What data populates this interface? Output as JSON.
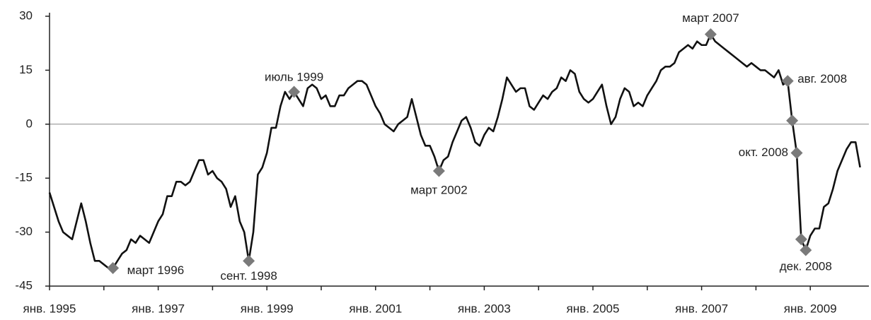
{
  "chart_data": {
    "type": "line",
    "categories": [
      "янв. 1995",
      null,
      null,
      null,
      null,
      null,
      null,
      null,
      null,
      null,
      null,
      null,
      null,
      null,
      null,
      null,
      null,
      null,
      null,
      null,
      null,
      null,
      null,
      null,
      "янв. 1997",
      null,
      null,
      null,
      null,
      null,
      null,
      null,
      null,
      null,
      null,
      null,
      null,
      null,
      null,
      null,
      null,
      null,
      null,
      null,
      null,
      null,
      null,
      null,
      "янв. 1999",
      null,
      null,
      null,
      null,
      null,
      null,
      null,
      null,
      null,
      null,
      null,
      null,
      null,
      null,
      null,
      null,
      null,
      null,
      null,
      null,
      null,
      null,
      null,
      "янв. 2001",
      null,
      null,
      null,
      null,
      null,
      null,
      null,
      null,
      null,
      null,
      null,
      null,
      null,
      null,
      null,
      null,
      null,
      null,
      null,
      null,
      null,
      null,
      null,
      "янв. 2003",
      null,
      null,
      null,
      null,
      null,
      null,
      null,
      null,
      null,
      null,
      null,
      null,
      null,
      null,
      null,
      null,
      null,
      null,
      null,
      null,
      null,
      null,
      null,
      "янв. 2005",
      null,
      null,
      null,
      null,
      null,
      null,
      null,
      null,
      null,
      null,
      null,
      null,
      null,
      null,
      null,
      null,
      null,
      null,
      null,
      null,
      null,
      null,
      null,
      "янв. 2007",
      null,
      null,
      null,
      null,
      null,
      null,
      null,
      null,
      null,
      null,
      null,
      null,
      null,
      null,
      null,
      null,
      null,
      null,
      null,
      null,
      null,
      null,
      null,
      "янв. 2009",
      null,
      null,
      null,
      null,
      null,
      null,
      null,
      null,
      null,
      null,
      null
    ],
    "series": [
      {
        "color": "#111111",
        "values": [
          -19,
          -23,
          -27,
          -30,
          -31,
          -32,
          -27,
          -22,
          -27,
          -33,
          -38,
          -38,
          -39,
          -40,
          -40,
          -38,
          -36,
          -35,
          -32,
          -33,
          -31,
          -32,
          -33,
          -30,
          -27,
          -25,
          -20,
          -20,
          -16,
          -16,
          -17,
          -16,
          -13,
          -10,
          -10,
          -14,
          -13,
          -15,
          -16,
          -18,
          -23,
          -20,
          -27,
          -30,
          -38,
          -30,
          -14,
          -12,
          -8,
          -1,
          -1,
          5,
          9,
          7,
          9,
          7,
          5,
          10,
          11,
          10,
          7,
          8,
          5,
          5,
          8,
          8,
          10,
          11,
          12,
          12,
          11,
          8,
          5,
          3,
          0,
          -1,
          -2,
          0,
          1,
          2,
          7,
          2,
          -3,
          -6,
          -6,
          -9,
          -13,
          -10,
          -9,
          -5,
          -2,
          1,
          2,
          -1,
          -5,
          -6,
          -3,
          -1,
          -2,
          2,
          7,
          13,
          11,
          9,
          10,
          10,
          5,
          4,
          6,
          8,
          7,
          9,
          10,
          13,
          12,
          15,
          14,
          9,
          7,
          6,
          7,
          9,
          11,
          5,
          0,
          2,
          7,
          10,
          9,
          5,
          6,
          5,
          8,
          10,
          12,
          15,
          16,
          16,
          17,
          20,
          21,
          22,
          21,
          23,
          22,
          22,
          25,
          23,
          22,
          21,
          20,
          19,
          18,
          17,
          16,
          17,
          16,
          15,
          15,
          14,
          13,
          15,
          11,
          12,
          1,
          -8,
          -32,
          -35,
          -31,
          -29,
          -29,
          -23,
          -22,
          -18,
          -13,
          -10,
          -7,
          -5,
          -5,
          -12
        ]
      }
    ],
    "markers": [
      14,
      44,
      54,
      86,
      146,
      163,
      164,
      165,
      166,
      167
    ],
    "marker_color": "#7a7a7a",
    "annotations": [
      {
        "text": "март 1996",
        "index": 14
      },
      {
        "text": "сент. 1998",
        "index": 44
      },
      {
        "text": "июль 1999",
        "index": 54
      },
      {
        "text": "март 2002",
        "index": 86
      },
      {
        "text": "март 2007",
        "index": 146
      },
      {
        "text": "авг. 2008",
        "index": 163
      },
      {
        "text": "окт. 2008",
        "index": 165
      },
      {
        "text": "дек. 2008",
        "index": 167
      }
    ],
    "ylim": [
      -45,
      30
    ],
    "yticks": [
      30,
      15,
      0,
      -15,
      -30,
      -45
    ],
    "grid": true
  }
}
